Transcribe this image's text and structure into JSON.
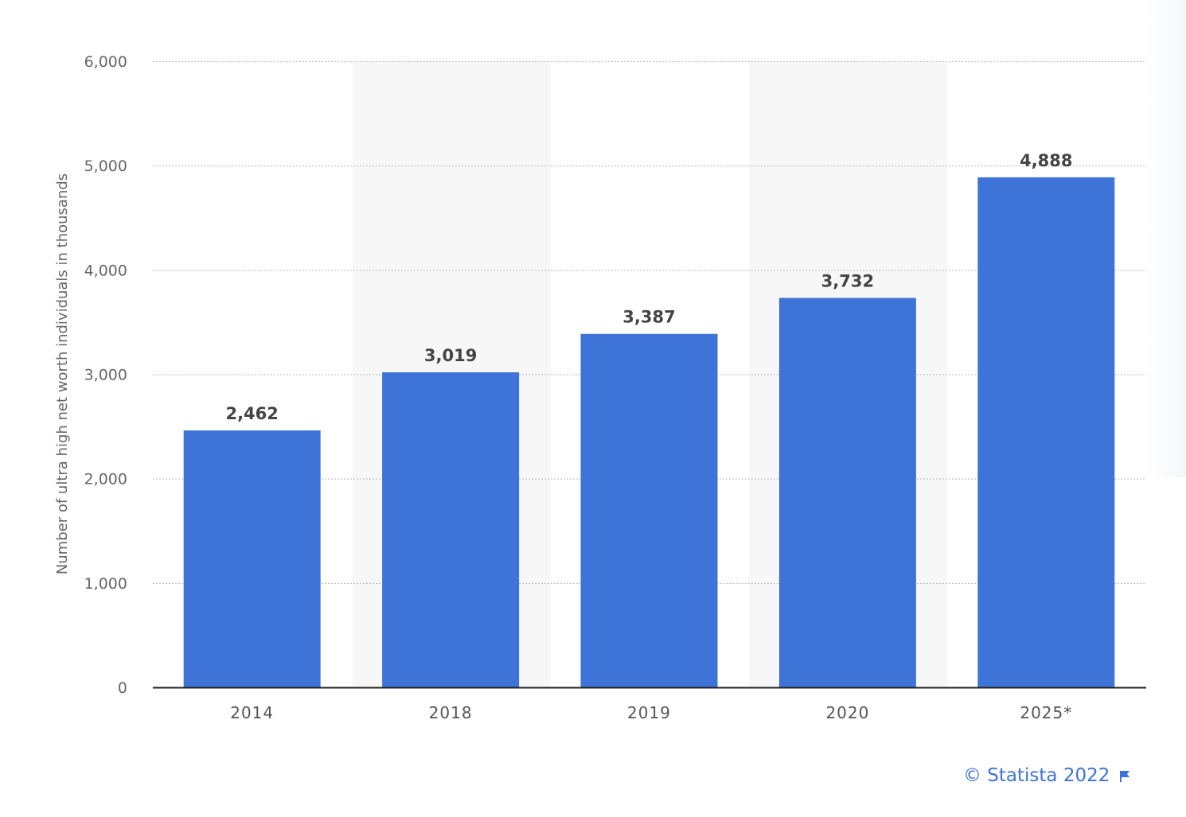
{
  "chart_data": {
    "type": "bar",
    "categories": [
      "2014",
      "2018",
      "2019",
      "2020",
      "2025*"
    ],
    "values": [
      2462,
      3019,
      3387,
      3732,
      4888
    ],
    "value_labels": [
      "2,462",
      "3,019",
      "3,387",
      "3,732",
      "4,888"
    ],
    "ylabel": "Number of ultra high net worth individuals in thousands",
    "xlabel": "",
    "ylim": [
      0,
      6000
    ],
    "yticks": [
      0,
      1000,
      2000,
      3000,
      4000,
      5000,
      6000
    ],
    "ytick_labels": [
      "0",
      "1,000",
      "2,000",
      "3,000",
      "4,000",
      "5,000",
      "6,000"
    ],
    "grid": true,
    "bar_color": "#3e73d7",
    "alternate_band_color": "#f7f7f7"
  },
  "credit": {
    "text": "© Statista 2022",
    "color": "#3d73d6",
    "icon": "flag-icon"
  }
}
